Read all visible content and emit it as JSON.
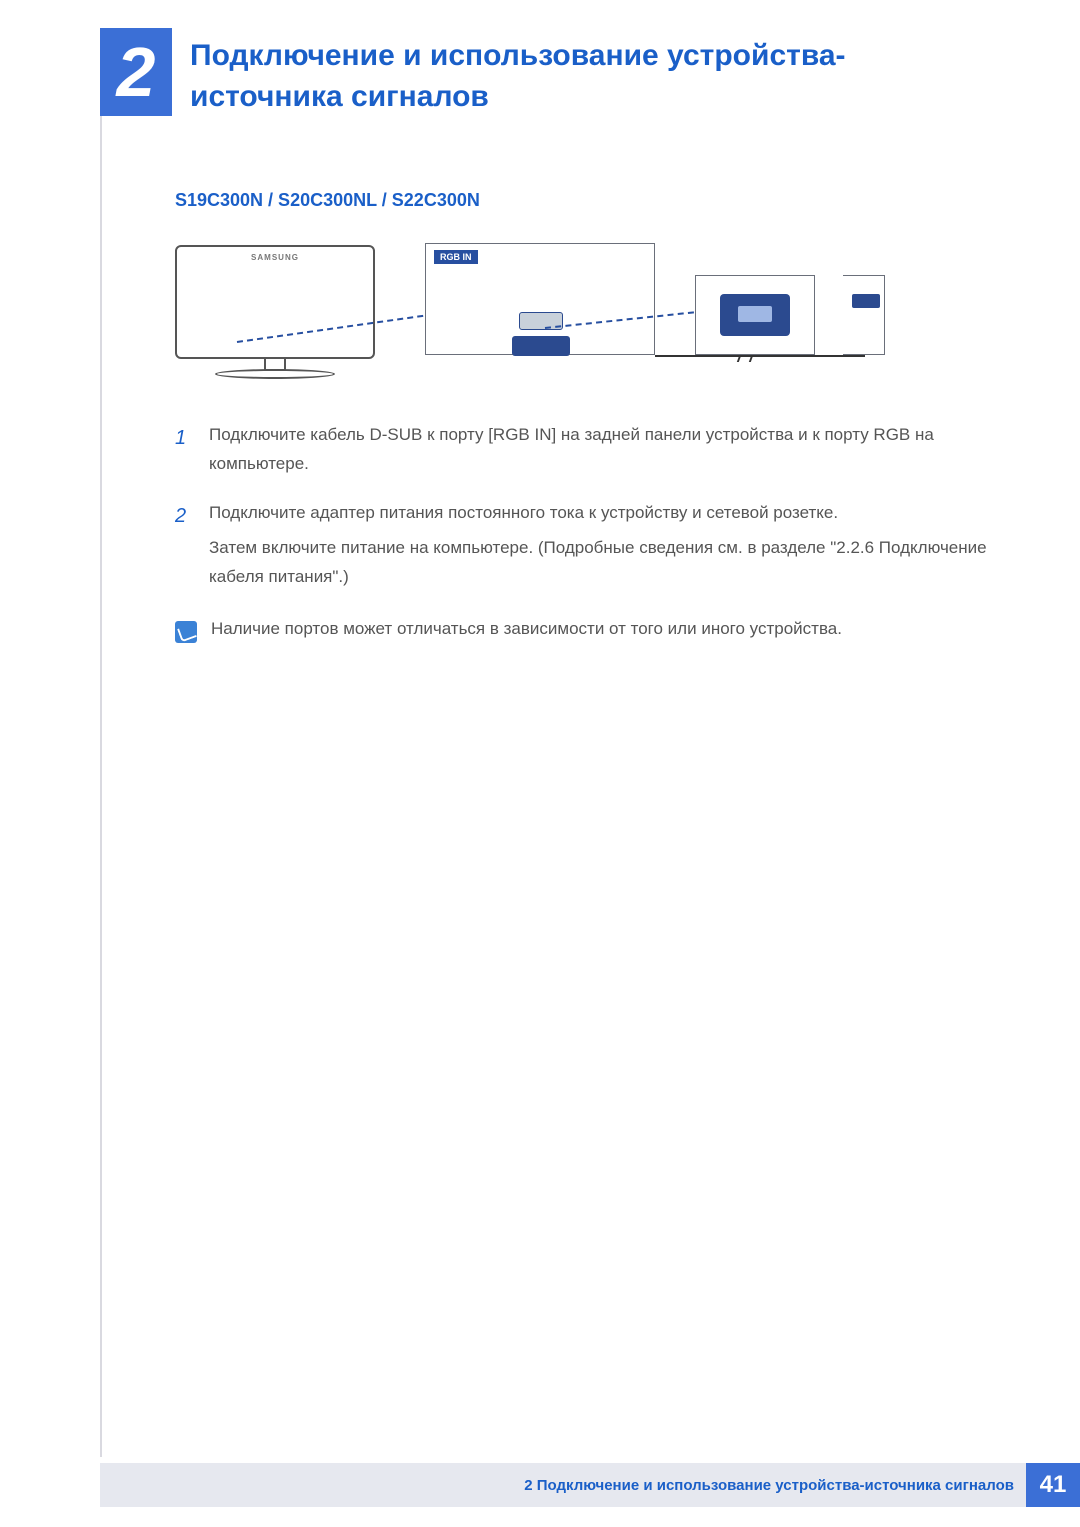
{
  "chapter": {
    "number": "2",
    "title": "Подключение и использование устройства-источника сигналов"
  },
  "section": {
    "model_line": "S19C300N / S20C300NL / S22C300N"
  },
  "diagram": {
    "type": "infographic",
    "monitor_brand": "SAMSUNG",
    "port_label": "RGB IN",
    "colors": {
      "accent_blue": "#2b4a8f",
      "badge_blue": "#3b6fd6",
      "link_blue": "#1a5fc8",
      "dash_blue": "#274fa0",
      "outline_gray": "#6a6f7a",
      "rule_gray": "#d9d9e0",
      "footer_bg": "#e6e8ef"
    }
  },
  "steps": [
    {
      "num": "1",
      "paras": [
        "Подключите кабель D-SUB к порту [RGB IN] на задней панели устройства и к порту RGB на компьютере."
      ]
    },
    {
      "num": "2",
      "paras": [
        "Подключите адаптер питания постоянного тока к устройству и сетевой розетке.",
        "Затем включите питание на компьютере. (Подробные сведения см. в разделе \"2.2.6 Подключение кабеля питания\".)"
      ]
    }
  ],
  "note": "Наличие портов может отличаться в зависимости от того или иного устройства.",
  "footer": {
    "text": "2 Подключение и использование устройства-источника сигналов",
    "page": "41"
  }
}
